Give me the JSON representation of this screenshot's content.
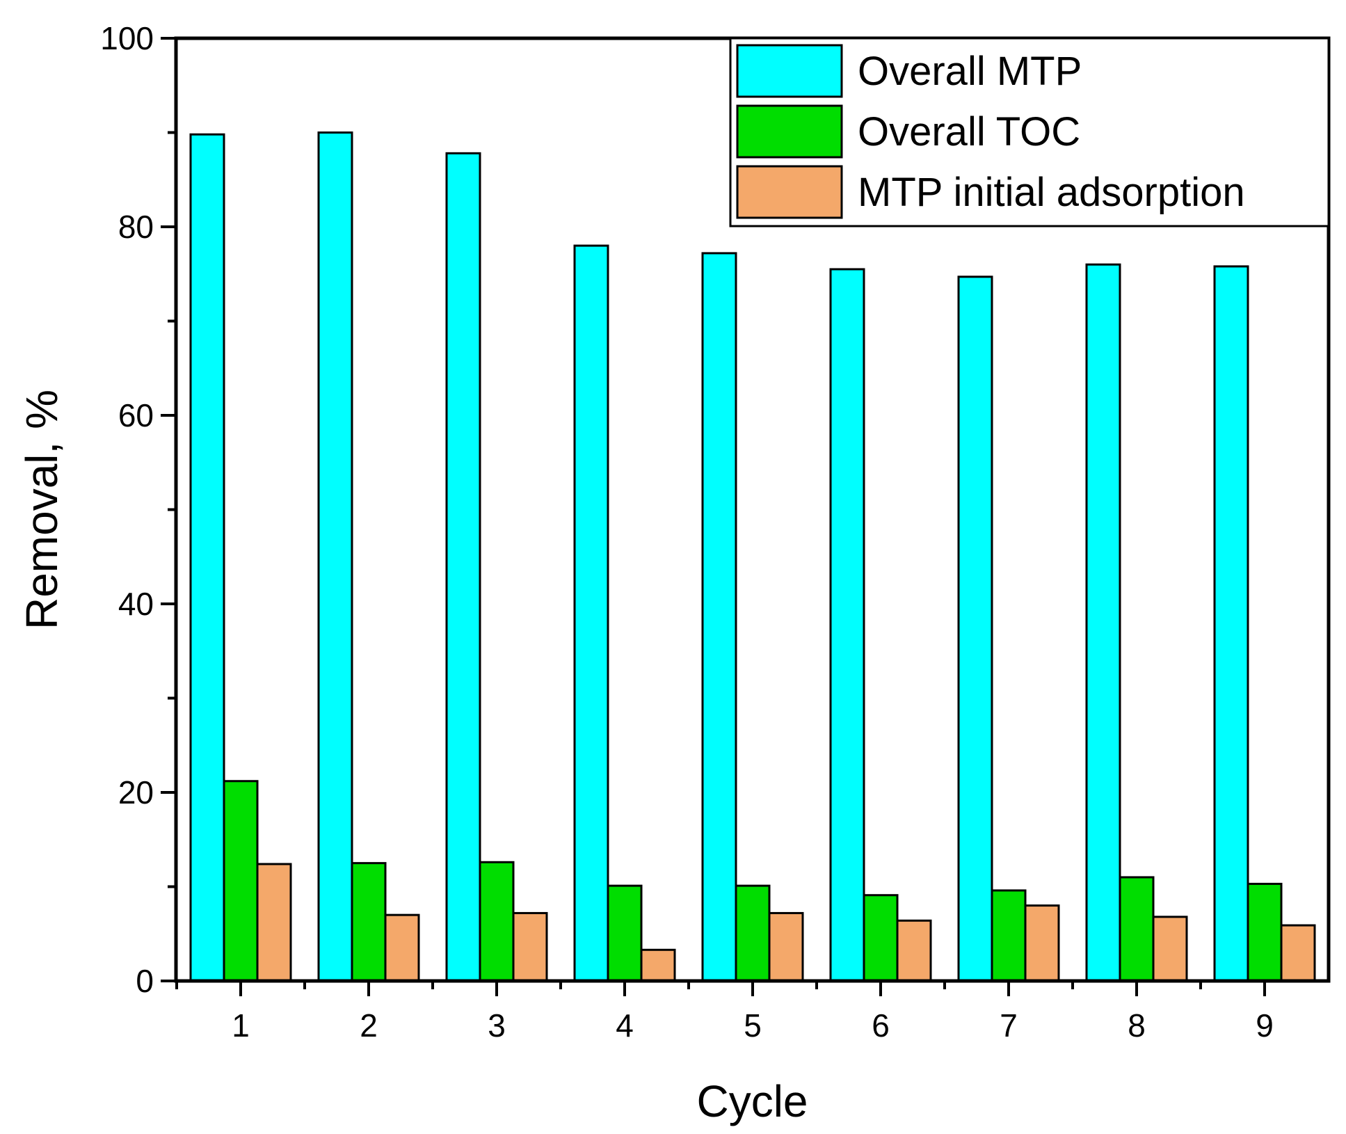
{
  "chart_data": {
    "type": "bar",
    "title": "",
    "xlabel": "Cycle",
    "ylabel": "Removal, %",
    "categories": [
      "1",
      "2",
      "3",
      "4",
      "5",
      "6",
      "7",
      "8",
      "9"
    ],
    "ylim": [
      0,
      100
    ],
    "yticks": [
      0,
      20,
      40,
      60,
      80,
      100
    ],
    "y_minor_step": 10,
    "grid": false,
    "legend_position": "top-right",
    "series": [
      {
        "name": "Overall MTP",
        "color": "#00FFFF",
        "values": [
          89.8,
          90.0,
          87.8,
          78.0,
          77.2,
          75.5,
          74.7,
          76.0,
          75.8
        ]
      },
      {
        "name": "Overall TOC",
        "color": "#00DD00",
        "values": [
          21.2,
          12.5,
          12.6,
          10.1,
          10.1,
          9.1,
          9.6,
          11.0,
          10.3
        ]
      },
      {
        "name": "MTP initial adsorption",
        "color": "#F4A86A",
        "values": [
          12.4,
          7.0,
          7.2,
          3.3,
          7.2,
          6.4,
          8.0,
          6.8,
          5.9
        ]
      }
    ]
  }
}
